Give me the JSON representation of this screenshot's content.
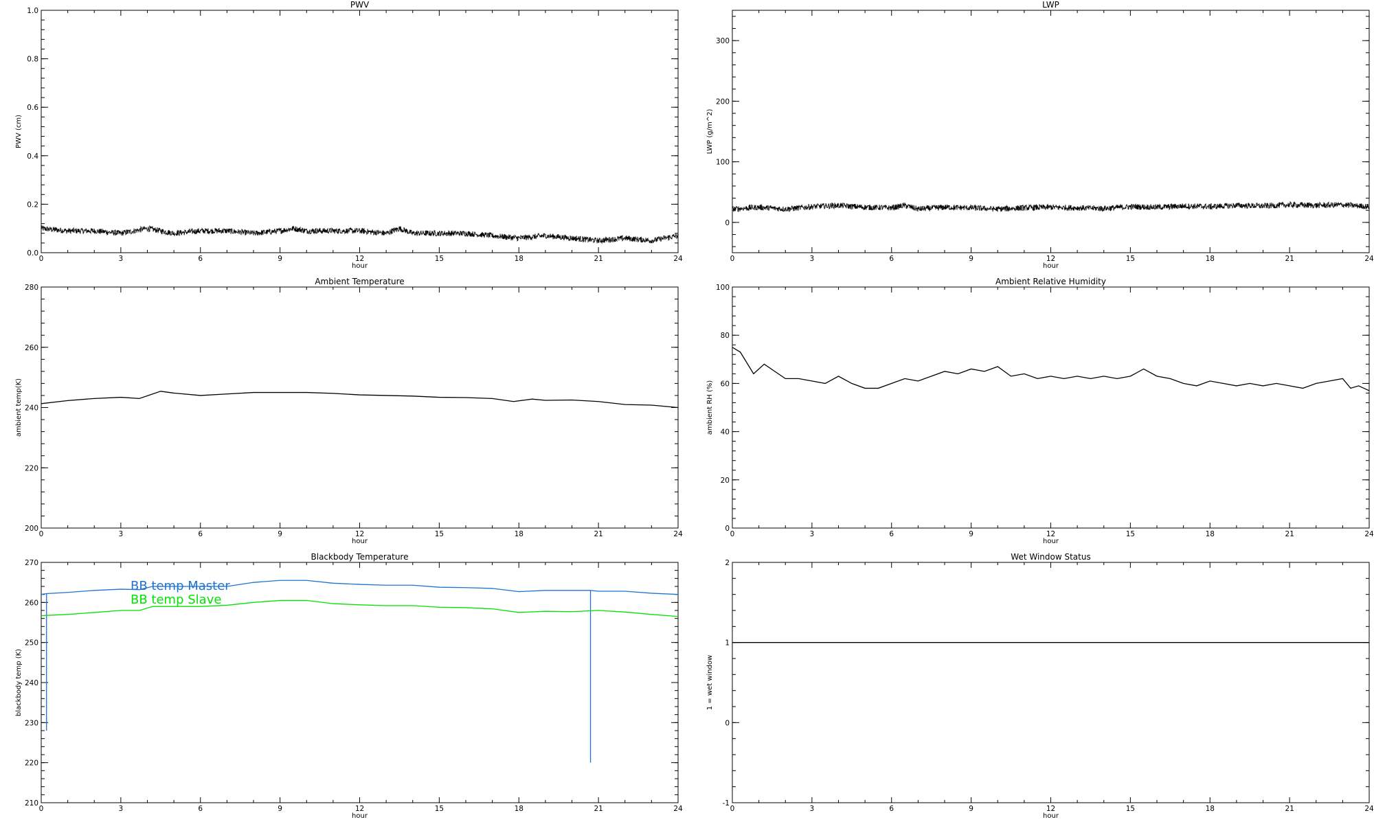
{
  "chart_data": [
    {
      "type": "line",
      "title": "PWV",
      "xlabel": "hour",
      "ylabel": "PWV (cm)",
      "xlim": [
        0,
        24
      ],
      "ylim": [
        0,
        1
      ],
      "xticks": [
        0,
        3,
        6,
        9,
        12,
        15,
        18,
        21,
        24
      ],
      "yticks": [
        "0.0",
        "0.2",
        "0.4",
        "0.6",
        "0.8",
        "1.0"
      ],
      "grid": false,
      "noisy": true,
      "series": [
        {
          "color": "#000000",
          "x": [
            0,
            1,
            2,
            3,
            4,
            4.5,
            5,
            6,
            7,
            8,
            9,
            9.5,
            10,
            11,
            12,
            13,
            13.5,
            14,
            15,
            16,
            17,
            18,
            19,
            20,
            21,
            22,
            23,
            24
          ],
          "y": [
            0.1,
            0.09,
            0.09,
            0.08,
            0.1,
            0.09,
            0.08,
            0.09,
            0.09,
            0.08,
            0.09,
            0.1,
            0.09,
            0.09,
            0.09,
            0.08,
            0.1,
            0.08,
            0.08,
            0.08,
            0.07,
            0.06,
            0.07,
            0.06,
            0.05,
            0.06,
            0.05,
            0.07
          ]
        }
      ]
    },
    {
      "type": "line",
      "title": "LWP",
      "xlabel": "hour",
      "ylabel": "LWP (g/m^2)",
      "xlim": [
        0,
        24
      ],
      "ylim": [
        -50,
        350
      ],
      "xticks": [
        0,
        3,
        6,
        9,
        12,
        15,
        18,
        21,
        24
      ],
      "yticks": [
        "0",
        "100",
        "200",
        "300"
      ],
      "grid": false,
      "noisy": true,
      "series": [
        {
          "color": "#000000",
          "x": [
            0,
            1,
            2,
            3,
            4,
            5,
            6,
            6.5,
            7,
            8,
            9,
            10,
            11,
            12,
            13,
            14,
            15,
            16,
            17,
            18,
            19,
            20,
            21,
            22,
            23,
            24
          ],
          "y": [
            22,
            25,
            22,
            26,
            28,
            25,
            24,
            28,
            22,
            25,
            24,
            22,
            24,
            25,
            24,
            23,
            26,
            25,
            27,
            26,
            28,
            27,
            29,
            28,
            29,
            26
          ]
        }
      ]
    },
    {
      "type": "line",
      "title": "Ambient Temperature",
      "xlabel": "hour",
      "ylabel": "ambient temp(K)",
      "xlim": [
        0,
        24
      ],
      "ylim": [
        200,
        280
      ],
      "xticks": [
        0,
        3,
        6,
        9,
        12,
        15,
        18,
        21,
        24
      ],
      "yticks": [
        "200",
        "220",
        "240",
        "260",
        "280"
      ],
      "grid": false,
      "series": [
        {
          "color": "#000000",
          "x": [
            0,
            1,
            2,
            3,
            3.7,
            4.5,
            5,
            6,
            7,
            8,
            9,
            10,
            11,
            12,
            13,
            14,
            15,
            16,
            17,
            17.8,
            18.5,
            19,
            20,
            21,
            22,
            23,
            24
          ],
          "y": [
            241.3,
            242.3,
            243,
            243.4,
            243,
            245.4,
            244.8,
            244,
            244.5,
            245,
            245,
            245,
            244.7,
            244.2,
            244,
            243.8,
            243.4,
            243.3,
            243,
            242,
            242.8,
            242.4,
            242.5,
            242,
            241,
            240.8,
            240
          ]
        }
      ]
    },
    {
      "type": "line",
      "title": "Ambient Relative Humidity",
      "xlabel": "hour",
      "ylabel": "ambient RH (%)",
      "xlim": [
        0,
        24
      ],
      "ylim": [
        0,
        100
      ],
      "xticks": [
        0,
        3,
        6,
        9,
        12,
        15,
        18,
        21,
        24
      ],
      "yticks": [
        "0",
        "20",
        "40",
        "60",
        "80",
        "100"
      ],
      "grid": false,
      "series": [
        {
          "color": "#000000",
          "x": [
            0,
            0.3,
            0.8,
            1.2,
            1.6,
            2,
            2.5,
            3,
            3.5,
            4,
            4.5,
            5,
            5.5,
            6,
            6.5,
            7,
            7.5,
            8,
            8.5,
            9,
            9.5,
            10,
            10.5,
            11,
            11.5,
            12,
            12.5,
            13,
            13.5,
            14,
            14.5,
            15,
            15.5,
            16,
            16.5,
            17,
            17.5,
            18,
            18.5,
            19,
            19.5,
            20,
            20.5,
            21,
            21.5,
            22,
            22.5,
            23,
            23.3,
            23.6,
            24
          ],
          "y": [
            75,
            73,
            64,
            68,
            65,
            62,
            62,
            61,
            60,
            63,
            60,
            58,
            58,
            60,
            62,
            61,
            63,
            65,
            64,
            66,
            65,
            67,
            63,
            64,
            62,
            63,
            62,
            63,
            62,
            63,
            62,
            63,
            66,
            63,
            62,
            60,
            59,
            61,
            60,
            59,
            60,
            59,
            60,
            59,
            58,
            60,
            61,
            62,
            58,
            59,
            57
          ]
        }
      ]
    },
    {
      "type": "line",
      "title": "Blackbody Temperature",
      "xlabel": "hour",
      "ylabel": "blackbody temp (K)",
      "xlim": [
        0,
        24
      ],
      "ylim": [
        210,
        270
      ],
      "xticks": [
        0,
        3,
        6,
        9,
        12,
        15,
        18,
        21,
        24
      ],
      "yticks": [
        "210",
        "220",
        "230",
        "240",
        "250",
        "260",
        "270"
      ],
      "grid": false,
      "legend": {
        "placement": "top-left inside",
        "entries": [
          "BB temp Master",
          "BB temp Slave"
        ]
      },
      "series": [
        {
          "name": "BB temp Master",
          "color": "#1e72d2",
          "x": [
            0,
            0.2,
            0.2,
            0.2,
            1,
            2,
            3,
            3.7,
            4.2,
            5,
            6,
            7,
            8,
            9,
            10,
            11,
            12,
            13,
            14,
            15,
            16,
            17,
            18,
            19,
            20,
            20.7,
            20.7,
            20.7,
            21,
            22,
            23,
            24
          ],
          "y": [
            262,
            262.2,
            228,
            262.2,
            262.5,
            263,
            263.3,
            263.2,
            264,
            264,
            264,
            264,
            265,
            265.5,
            265.5,
            264.8,
            264.5,
            264.3,
            264.3,
            263.8,
            263.7,
            263.5,
            262.7,
            263,
            263,
            263,
            220,
            263,
            262.8,
            262.8,
            262.3,
            262
          ]
        },
        {
          "name": "BB temp Slave",
          "color": "#00e400",
          "x": [
            0,
            1,
            2,
            3,
            3.7,
            4.2,
            5,
            6,
            7,
            8,
            9,
            10,
            11,
            12,
            13,
            14,
            15,
            16,
            17,
            18,
            19,
            20,
            21,
            22,
            23,
            24
          ],
          "y": [
            256.7,
            257,
            257.5,
            258,
            258,
            259,
            259,
            259,
            259.3,
            260,
            260.5,
            260.5,
            259.7,
            259.4,
            259.2,
            259.2,
            258.8,
            258.7,
            258.4,
            257.5,
            257.8,
            257.7,
            258,
            257.6,
            257,
            256.5
          ]
        }
      ]
    },
    {
      "type": "line",
      "title": "Wet Window Status",
      "xlabel": "hour",
      "ylabel": "1 = wet window",
      "xlim": [
        0,
        24
      ],
      "ylim": [
        -1,
        2
      ],
      "xticks": [
        0,
        3,
        6,
        9,
        12,
        15,
        18,
        21,
        24
      ],
      "yticks": [
        "-1",
        "0",
        "1",
        "2"
      ],
      "grid": false,
      "series": [
        {
          "color": "#000000",
          "x": [
            0,
            24
          ],
          "y": [
            1,
            1
          ]
        }
      ]
    }
  ]
}
